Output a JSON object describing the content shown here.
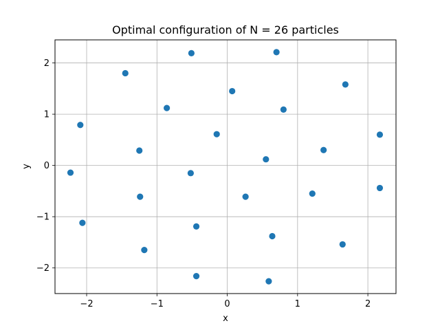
{
  "chart_data": {
    "type": "scatter",
    "title": "Optimal configuration of N = 26 particles",
    "xlabel": "x",
    "ylabel": "y",
    "xlim": [
      -2.45,
      2.4
    ],
    "ylim": [
      -2.5,
      2.45
    ],
    "xticks": [
      -2,
      -1,
      0,
      1,
      2
    ],
    "yticks": [
      -2,
      -1,
      0,
      1,
      2
    ],
    "grid": true,
    "marker_color": "#1f77b4",
    "points": [
      {
        "x": -2.23,
        "y": -0.14
      },
      {
        "x": -2.09,
        "y": 0.79
      },
      {
        "x": -2.06,
        "y": -1.12
      },
      {
        "x": -1.45,
        "y": 1.8
      },
      {
        "x": -1.25,
        "y": 0.29
      },
      {
        "x": -1.24,
        "y": -0.61
      },
      {
        "x": -1.18,
        "y": -1.65
      },
      {
        "x": -0.86,
        "y": 1.12
      },
      {
        "x": -0.51,
        "y": 2.19
      },
      {
        "x": -0.52,
        "y": -0.15
      },
      {
        "x": -0.44,
        "y": -1.19
      },
      {
        "x": -0.44,
        "y": -2.16
      },
      {
        "x": -0.15,
        "y": 0.61
      },
      {
        "x": 0.07,
        "y": 1.45
      },
      {
        "x": 0.26,
        "y": -0.61
      },
      {
        "x": 0.55,
        "y": 0.12
      },
      {
        "x": 0.59,
        "y": -2.26
      },
      {
        "x": 0.64,
        "y": -1.38
      },
      {
        "x": 0.7,
        "y": 2.21
      },
      {
        "x": 0.8,
        "y": 1.09
      },
      {
        "x": 1.21,
        "y": -0.55
      },
      {
        "x": 1.37,
        "y": 0.3
      },
      {
        "x": 1.64,
        "y": -1.54
      },
      {
        "x": 1.68,
        "y": 1.58
      },
      {
        "x": 2.17,
        "y": 0.6
      },
      {
        "x": 2.17,
        "y": -0.44
      }
    ]
  }
}
